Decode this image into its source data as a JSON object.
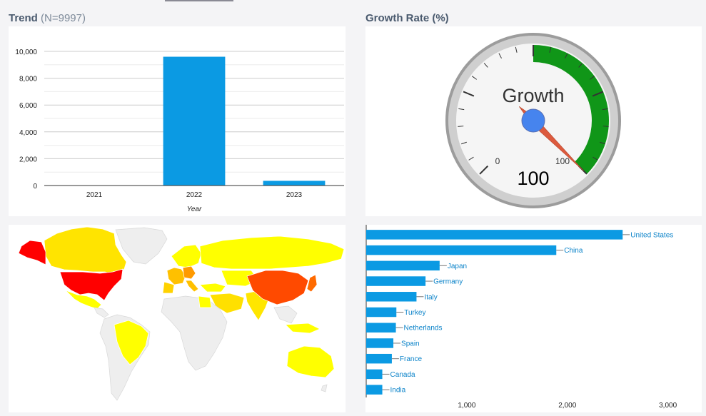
{
  "panels": {
    "trend_title": "Trend",
    "trend_sub": "(N=9997)",
    "growth_title": "Growth Rate (%)"
  },
  "chart_data": [
    {
      "type": "bar",
      "orientation": "vertical",
      "categories": [
        "2021",
        "2022",
        "2023"
      ],
      "values": [
        0,
        9600,
        350
      ],
      "xlabel": "Year",
      "ylim": [
        0,
        10000
      ],
      "yticks": [
        "0",
        "2,000",
        "4,000",
        "6,000",
        "8,000",
        "10,000"
      ],
      "color": "#0b9ae3",
      "grid": true
    },
    {
      "type": "gauge",
      "label": "Growth",
      "value": 100,
      "display": "100",
      "min": 0,
      "max": 100,
      "min_label": "0",
      "max_label": "100",
      "band_color": "#109618"
    },
    {
      "type": "map",
      "region": "world",
      "scale": "values by country, yellow (low) to red (high)",
      "highlighted": [
        {
          "country": "United States",
          "color": "#ff0000"
        },
        {
          "country": "China",
          "color": "#ff4a00"
        },
        {
          "country": "Japan",
          "color": "#ff6a00"
        },
        {
          "country": "Germany",
          "color": "#ff9a00"
        },
        {
          "country": "Italy",
          "color": "#ffc000"
        },
        {
          "country": "Canada",
          "color": "#ffe200"
        },
        {
          "country": "Russia",
          "color": "#ffff00"
        },
        {
          "country": "Brazil",
          "color": "#ffff00"
        },
        {
          "country": "Australia",
          "color": "#ffff00"
        },
        {
          "country": "India",
          "color": "#ffe600"
        }
      ]
    },
    {
      "type": "bar",
      "orientation": "horizontal",
      "categories": [
        "United States",
        "China",
        "Japan",
        "Germany",
        "Italy",
        "Turkey",
        "Netherlands",
        "Spain",
        "France",
        "Canada",
        "India"
      ],
      "values": [
        2550,
        1890,
        730,
        590,
        500,
        300,
        295,
        270,
        255,
        160,
        160
      ],
      "xticks": [
        "1,000",
        "2,000",
        "3,000"
      ],
      "xtick_values": [
        1000,
        2000,
        3000
      ],
      "color": "#0b9ae3",
      "label_color": "#0b83c9"
    }
  ]
}
